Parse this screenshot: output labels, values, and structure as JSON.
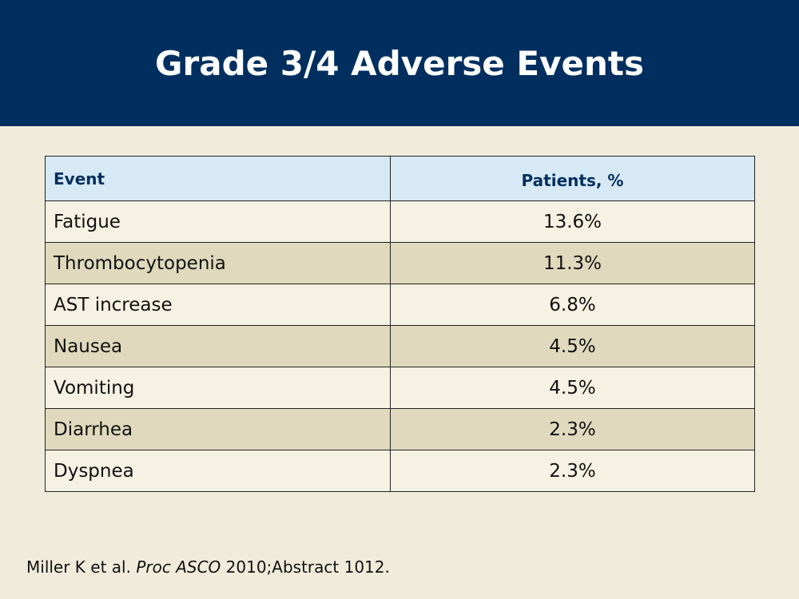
{
  "slide": {
    "title": "Grade 3/4 Adverse Events"
  },
  "table": {
    "headers": {
      "event": "Event",
      "patients": "Patients, %"
    },
    "rows": [
      {
        "event": "Fatigue",
        "patients": "13.6%"
      },
      {
        "event": "Thrombocytopenia",
        "patients": "11.3%"
      },
      {
        "event": "AST increase",
        "patients": "6.8%"
      },
      {
        "event": "Nausea",
        "patients": "4.5%"
      },
      {
        "event": "Vomiting",
        "patients": "4.5%"
      },
      {
        "event": "Diarrhea",
        "patients": "2.3%"
      },
      {
        "event": "Dyspnea",
        "patients": "2.3%"
      }
    ]
  },
  "citation": {
    "authors": "Miller K et al.",
    "journal": "Proc ASCO",
    "rest": "2010;Abstract 1012."
  },
  "colors": {
    "title_bar": "#002f5f",
    "background": "#f0ebdb",
    "header_row": "#d6e9f5",
    "row_light": "#f5f1e3",
    "row_dark": "#e0d9bd"
  }
}
